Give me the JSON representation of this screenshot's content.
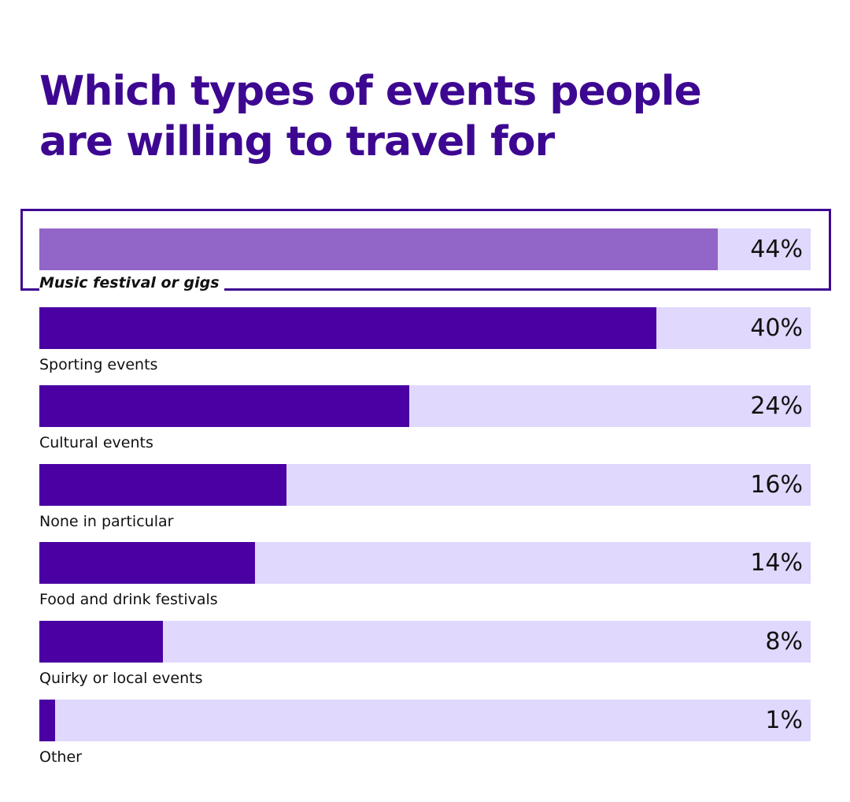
{
  "chart_data": {
    "type": "bar",
    "orientation": "horizontal",
    "title_lines": [
      "Which types of events people",
      "are willing to travel for"
    ],
    "title": "Which types of events people are willing to travel for",
    "categories": [
      "Music festival or gigs",
      "Sporting events",
      "Cultural events",
      "None in particular",
      "Food and drink festivals",
      "Quirky or local events",
      "Other"
    ],
    "values": [
      44,
      40,
      24,
      16,
      14,
      8,
      1
    ],
    "value_labels": [
      "44%",
      "40%",
      "24%",
      "16%",
      "14%",
      "8%",
      "1%"
    ],
    "unit": "%",
    "xlim": [
      0,
      50
    ],
    "highlighted_category": "Music festival or gigs",
    "xlabel": "",
    "ylabel": ""
  },
  "colors": {
    "title": "#3d0891",
    "bar": "#4a00a3",
    "bar_highlight": "#9266c8",
    "track": "#e0d8fd",
    "highlight_border": "#3d0891"
  }
}
